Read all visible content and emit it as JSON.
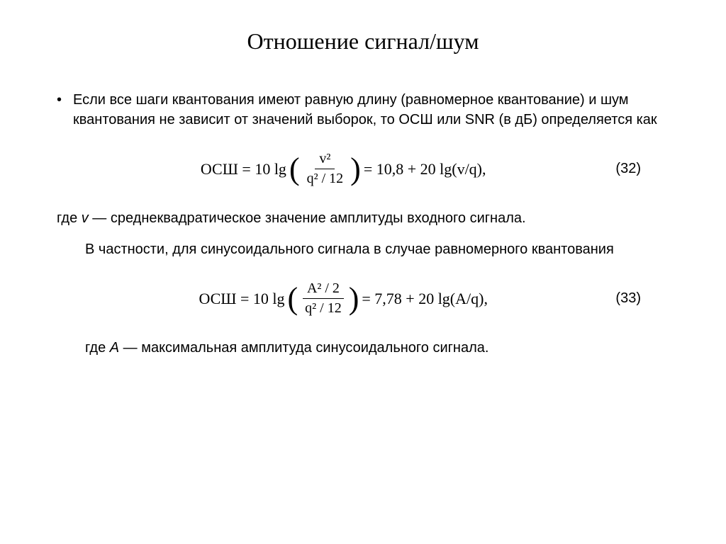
{
  "title": "Отношение сигнал/шум",
  "bullet": {
    "marker": "•",
    "text": "Если все шаги квантования имеют равную длину (равномерное квантование) и шум квантования не зависит от значений выборок, то ОСШ или SNR (в дБ) определяется как"
  },
  "equation1": {
    "prefix": "ОСШ = 10 lg",
    "numerator": "v²",
    "denominator": "q² / 12",
    "suffix": "= 10,8 + 20 lg(v/q),",
    "number": "(32)"
  },
  "para1_prefix": "где ",
  "para1_var": "v",
  "para1_suffix": " — среднеквадратическое значение амплитуды входного сигнала.",
  "para2": "В частности, для синусоидального сигнала в случае равномерного квантования",
  "equation2": {
    "prefix": "ОСШ = 10 lg",
    "numerator": "A² / 2",
    "denominator": "q² / 12",
    "suffix": "= 7,78 + 20 lg(A/q),",
    "number": "(33)"
  },
  "para3_prefix": "где ",
  "para3_var": "A",
  "para3_suffix": " — максимальная амплитуда синусоидального сигнала.",
  "colors": {
    "background": "#ffffff",
    "text": "#000000"
  },
  "typography": {
    "title_fontsize": 32,
    "body_fontsize": 20,
    "equation_fontsize": 22,
    "title_font": "Times New Roman",
    "body_font": "Arial"
  }
}
